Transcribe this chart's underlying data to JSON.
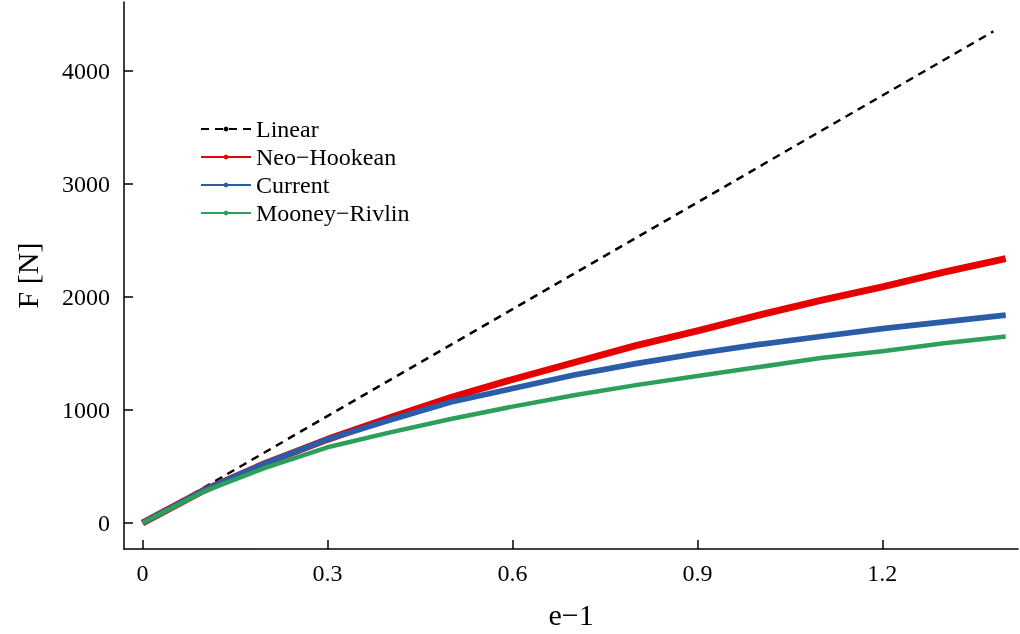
{
  "chart_data": {
    "type": "line",
    "xlabel": "e−1",
    "ylabel": "F [N]",
    "xlim": [
      -0.03,
      1.42
    ],
    "xticks": [
      0,
      0.3,
      0.6,
      0.9,
      1.2
    ],
    "ylim": [
      -230,
      4610
    ],
    "yticks": [
      0,
      1000,
      2000,
      3000,
      4000
    ],
    "legend": "top left",
    "marker": "none",
    "x": [
      0,
      0.1,
      0.2,
      0.3,
      0.4,
      0.5,
      0.6,
      0.7,
      0.8,
      0.9,
      1.0,
      1.1,
      1.2,
      1.3,
      1.4
    ],
    "series": [
      {
        "name": "Linear",
        "color": "#000000",
        "line_style": "dashed",
        "x": [
          0,
          1.38
        ],
        "values": [
          0,
          4350
        ]
      },
      {
        "name": "Neo−Hookean",
        "color": "#e60000",
        "line_style": "solid",
        "values": [
          0,
          290,
          530,
          740,
          930,
          1110,
          1270,
          1420,
          1570,
          1700,
          1840,
          1970,
          2090,
          2220,
          2340
        ]
      },
      {
        "name": "Current",
        "color": "#2b5ca8",
        "line_style": "solid",
        "values": [
          0,
          290,
          530,
          740,
          910,
          1070,
          1190,
          1310,
          1410,
          1500,
          1580,
          1650,
          1720,
          1780,
          1840
        ]
      },
      {
        "name": "Mooney−Rivlin",
        "color": "#2ca05a",
        "line_style": "solid",
        "values": [
          0,
          280,
          490,
          670,
          800,
          920,
          1030,
          1130,
          1220,
          1300,
          1380,
          1460,
          1520,
          1590,
          1650
        ]
      }
    ]
  }
}
